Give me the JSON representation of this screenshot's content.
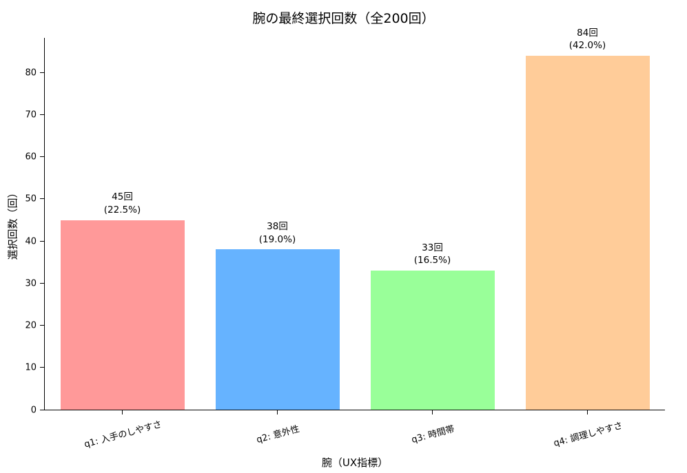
{
  "chart_data": {
    "type": "bar",
    "title": "腕の最終選択回数（全200回）",
    "xlabel": "腕（UX指標）",
    "ylabel": "選択回数（回）",
    "categories": [
      "q1: 入手のしやすさ",
      "q2: 意外性",
      "q3: 時間帯",
      "q4: 調理しやすさ"
    ],
    "values": [
      45,
      38,
      33,
      84
    ],
    "percentages": [
      22.5,
      19.0,
      16.5,
      42.0
    ],
    "bar_labels": [
      [
        "45回",
        "(22.5%)"
      ],
      [
        "38回",
        "(19.0%)"
      ],
      [
        "33回",
        "(16.5%)"
      ],
      [
        "84回",
        "(42.0%)"
      ]
    ],
    "total_trials": 200,
    "colors": [
      "#ff9999",
      "#66b3ff",
      "#99ff99",
      "#ffcc99"
    ],
    "yticks": [
      0,
      10,
      20,
      30,
      40,
      50,
      60,
      70,
      80
    ],
    "ylim": [
      0,
      88.2
    ],
    "grid": false,
    "legend_position": "none",
    "background_color": "#ffffff",
    "axis_color": "#000000"
  }
}
